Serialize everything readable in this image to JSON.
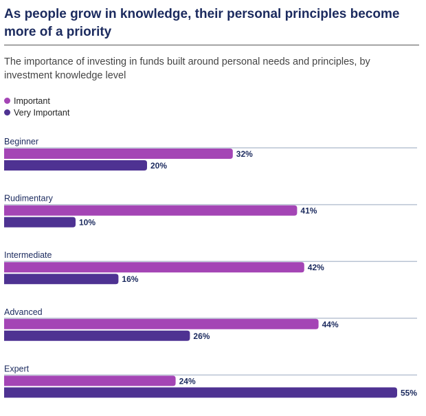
{
  "header": {
    "title": "As people grow in knowledge, their personal principles become more of a priority",
    "subtitle": "The importance of investing in funds built around personal needs and principles, by investment knowledge level"
  },
  "colors": {
    "important": "#a445b5",
    "very_important": "#4e3292",
    "baseline": "#b9c3d3",
    "text": "#1b2a5e"
  },
  "chart_data": {
    "type": "bar",
    "orientation": "horizontal",
    "title": "As people grow in knowledge, their personal principles become more of a priority",
    "subtitle": "The importance of investing in funds built around personal needs and principles, by investment knowledge level",
    "xlabel": "",
    "ylabel": "",
    "unit": "%",
    "xlim": [
      0,
      58
    ],
    "grid": false,
    "legend": "top-left",
    "categories": [
      "Beginner",
      "Rudimentary",
      "Intermediate",
      "Advanced",
      "Expert"
    ],
    "series": [
      {
        "name": "Important",
        "color": "#a445b5",
        "values": [
          32,
          41,
          42,
          44,
          24
        ]
      },
      {
        "name": "Very Important",
        "color": "#4e3292",
        "values": [
          20,
          10,
          16,
          26,
          55
        ]
      }
    ]
  }
}
